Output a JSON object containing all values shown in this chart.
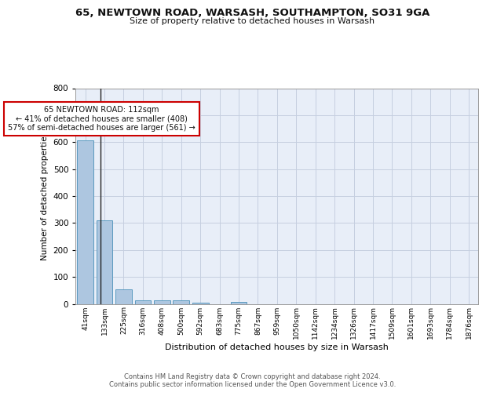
{
  "title1": "65, NEWTOWN ROAD, WARSASH, SOUTHAMPTON, SO31 9GA",
  "title2": "Size of property relative to detached houses in Warsash",
  "xlabel": "Distribution of detached houses by size in Warsash",
  "ylabel": "Number of detached properties",
  "bin_labels": [
    "41sqm",
    "133sqm",
    "225sqm",
    "316sqm",
    "408sqm",
    "500sqm",
    "592sqm",
    "683sqm",
    "775sqm",
    "867sqm",
    "959sqm",
    "1050sqm",
    "1142sqm",
    "1234sqm",
    "1326sqm",
    "1417sqm",
    "1509sqm",
    "1601sqm",
    "1693sqm",
    "1784sqm",
    "1876sqm"
  ],
  "bin_values": [
    608,
    311,
    53,
    12,
    13,
    12,
    5,
    0,
    8,
    0,
    0,
    0,
    0,
    0,
    0,
    0,
    0,
    0,
    0,
    0,
    0
  ],
  "bar_color": "#adc6e0",
  "bar_edge_color": "#5a9abf",
  "bg_color": "#e8eef8",
  "grid_color": "#c5cfe0",
  "property_label": "65 NEWTOWN ROAD: 112sqm",
  "pct_smaller": 41,
  "n_smaller": 408,
  "pct_larger_semi": 57,
  "n_larger_semi": 561,
  "annotation_box_color": "#ffffff",
  "annotation_box_edge": "#cc0000",
  "footer": "Contains HM Land Registry data © Crown copyright and database right 2024.\nContains public sector information licensed under the Open Government Licence v3.0.",
  "ylim": [
    0,
    800
  ],
  "yticks": [
    0,
    100,
    200,
    300,
    400,
    500,
    600,
    700,
    800
  ],
  "vline_x": 0.78
}
